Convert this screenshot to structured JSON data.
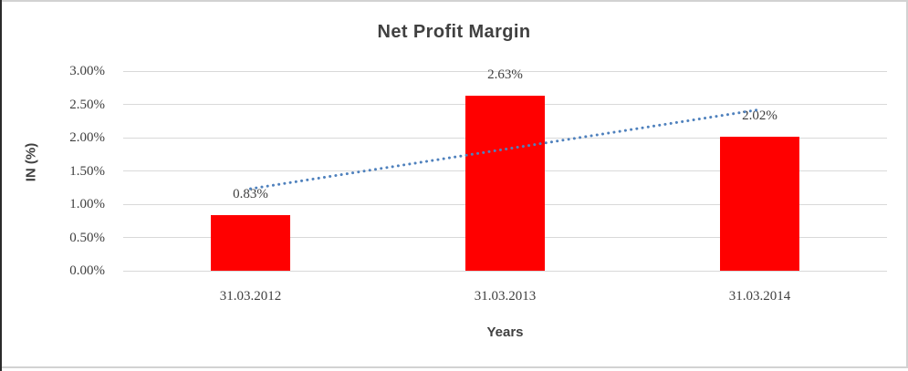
{
  "chart_data": {
    "type": "bar",
    "title": "Net Profit Margin",
    "xlabel": "Years",
    "ylabel": "IN (%)",
    "categories": [
      "31.03.2012",
      "31.03.2013",
      "31.03.2014"
    ],
    "values": [
      0.83,
      2.63,
      2.02
    ],
    "data_labels": [
      "0.83%",
      "2.63%",
      "2.02%"
    ],
    "ylim": [
      0,
      3
    ],
    "ytick_step": 0.5,
    "ytick_labels": [
      "0.00%",
      "0.50%",
      "1.00%",
      "1.50%",
      "2.00%",
      "2.50%",
      "3.00%"
    ],
    "grid": true,
    "legend": "none",
    "bar_color": "#ff0000",
    "label_color": "#3f3f3f",
    "gridline_color": "#d9d9d9",
    "trendline": {
      "type": "linear",
      "style": "dotted",
      "color": "#4f81bd"
    }
  }
}
